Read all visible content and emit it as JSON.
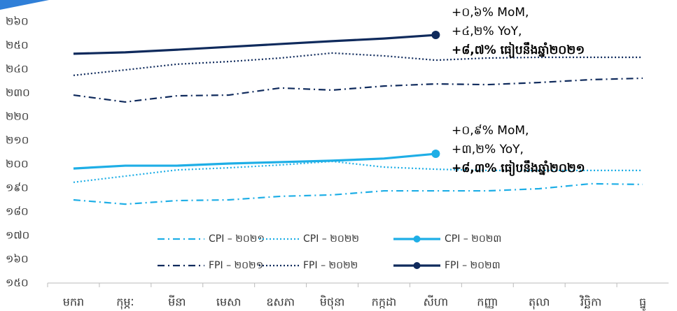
{
  "chart_data": {
    "type": "line",
    "categories": [
      "មករា",
      "កុម្ភៈ",
      "មីនា",
      "មេសា",
      "ឧសភា",
      "មិថុនា",
      "កក្កដា",
      "សីហា",
      "កញ្ញា",
      "តុលា",
      "វិច្ឆិកា",
      "ធ្នូ"
    ],
    "series": [
      {
        "name": "CPI – ២០២១",
        "color": "#1eaee6",
        "dash": "dashdot",
        "values": [
          185,
          183.2,
          184.7,
          185,
          186.5,
          187.1,
          188.8,
          188.8,
          188.8,
          189.7,
          191.8,
          191.5
        ]
      },
      {
        "name": "CPI – ២០២២",
        "color": "#1eaee6",
        "dash": "dotted",
        "values": [
          192.4,
          195,
          197.6,
          198.5,
          199.7,
          201.2,
          198.8,
          197.9,
          197.4,
          197.4,
          197.4,
          197.4
        ]
      },
      {
        "name": "CPI – ២០២៣",
        "color": "#1eaee6",
        "dash": "solid",
        "end_marker": true,
        "values": [
          198.2,
          199.4,
          199.4,
          200.3,
          200.9,
          201.5,
          202.4,
          204.4,
          null,
          null,
          null,
          null
        ]
      },
      {
        "name": "FPI – ២០២១",
        "color": "#0f2a5c",
        "dash": "dashdot",
        "values": [
          229.1,
          226.2,
          228.8,
          229.1,
          232.1,
          231.2,
          232.9,
          233.8,
          233.5,
          234.4,
          235.6,
          236.2
        ]
      },
      {
        "name": "FPI – ២០២២",
        "color": "#0f2a5c",
        "dash": "dotted",
        "values": [
          237.4,
          239.7,
          242.1,
          243.2,
          244.7,
          246.8,
          245.6,
          243.8,
          244.7,
          245,
          245,
          245
        ]
      },
      {
        "name": "FPI – ២០២៣",
        "color": "#0f2a5c",
        "dash": "solid",
        "end_marker": true,
        "values": [
          246.5,
          247.1,
          248.2,
          249.4,
          250.6,
          251.8,
          252.9,
          254.4,
          null,
          null,
          null,
          null
        ]
      }
    ],
    "ylim": [
      150,
      260
    ],
    "yticks": [
      {
        "value": 150,
        "label": "១៥០"
      },
      {
        "value": 160,
        "label": "១៦០"
      },
      {
        "value": 170,
        "label": "១៧០"
      },
      {
        "value": 180,
        "label": "១៨០"
      },
      {
        "value": 190,
        "label": "១៩០"
      },
      {
        "value": 200,
        "label": "២០០"
      },
      {
        "value": 210,
        "label": "២១០"
      },
      {
        "value": 220,
        "label": "២២០"
      },
      {
        "value": 230,
        "label": "២៣០"
      },
      {
        "value": 240,
        "label": "២៤០"
      },
      {
        "value": 250,
        "label": "២៥០"
      },
      {
        "value": 260,
        "label": "២៦០"
      }
    ],
    "grid": false,
    "annotations": [
      [
        "+០,៦% MoM,",
        "+៤,២% YoY,",
        "+៨,៧% ធៀបនឹងឆ្នាំ២០២១"
      ],
      [
        "+០,៩% MoM,",
        "+៣,២% YoY,",
        "+៨,៣% ធៀបនឹងឆ្នាំ២០២១"
      ]
    ]
  }
}
